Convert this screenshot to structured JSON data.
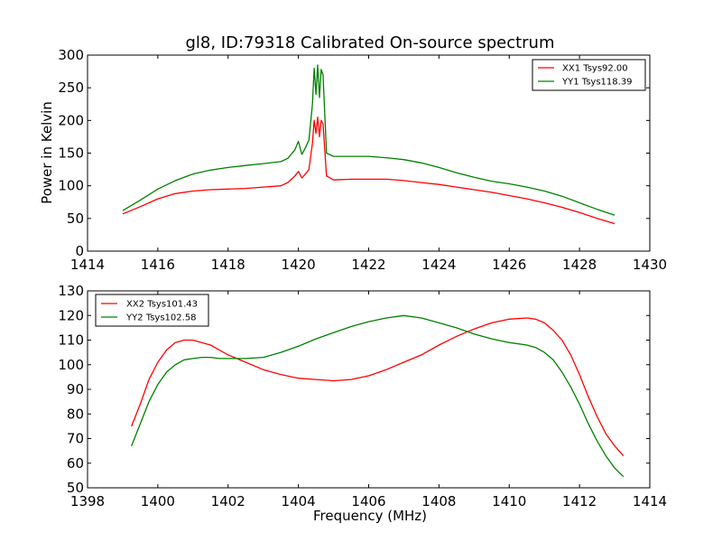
{
  "chart_data": [
    {
      "type": "line",
      "title": "gl8, ID:79318 Calibrated On-source spectrum",
      "xlabel": "",
      "ylabel": "Power in Kelvin",
      "xlim": [
        1414,
        1430
      ],
      "ylim": [
        0,
        300
      ],
      "xticks": [
        "1414",
        "1416",
        "1418",
        "1420",
        "1422",
        "1424",
        "1426",
        "1428",
        "1430"
      ],
      "yticks": [
        "0",
        "50",
        "100",
        "150",
        "200",
        "250",
        "300"
      ],
      "grid": false,
      "legend_position": "top-right",
      "series": [
        {
          "name": "XX1 Tsys92.00",
          "color": "#ff0000",
          "x": [
            1415.0,
            1415.5,
            1416.0,
            1416.5,
            1417.0,
            1417.5,
            1418.0,
            1418.5,
            1419.0,
            1419.5,
            1419.7,
            1419.9,
            1420.0,
            1420.1,
            1420.2,
            1420.3,
            1420.4,
            1420.45,
            1420.5,
            1420.55,
            1420.6,
            1420.65,
            1420.7,
            1420.8,
            1421.0,
            1421.5,
            1422.0,
            1422.5,
            1423.0,
            1423.5,
            1424.0,
            1424.5,
            1425.0,
            1425.5,
            1426.0,
            1426.5,
            1427.0,
            1427.5,
            1428.0,
            1428.5,
            1429.0
          ],
          "y": [
            57,
            68,
            80,
            88,
            92,
            94,
            95,
            96,
            98,
            100,
            105,
            115,
            122,
            112,
            118,
            125,
            165,
            200,
            180,
            205,
            175,
            200,
            195,
            115,
            109,
            110,
            110,
            110,
            108,
            105,
            102,
            98,
            94,
            90,
            85,
            80,
            74,
            67,
            59,
            50,
            42
          ]
        },
        {
          "name": "YY1 Tsys118.39",
          "color": "#008000",
          "x": [
            1415.0,
            1415.5,
            1416.0,
            1416.5,
            1417.0,
            1417.5,
            1418.0,
            1418.5,
            1419.0,
            1419.5,
            1419.7,
            1419.9,
            1420.0,
            1420.1,
            1420.2,
            1420.3,
            1420.4,
            1420.45,
            1420.5,
            1420.55,
            1420.6,
            1420.65,
            1420.7,
            1420.8,
            1421.0,
            1421.5,
            1422.0,
            1422.5,
            1423.0,
            1423.5,
            1424.0,
            1424.5,
            1425.0,
            1425.5,
            1426.0,
            1426.5,
            1427.0,
            1427.5,
            1428.0,
            1428.5,
            1429.0
          ],
          "y": [
            62,
            78,
            95,
            108,
            118,
            124,
            128,
            131,
            134,
            137,
            142,
            155,
            168,
            148,
            158,
            170,
            225,
            280,
            240,
            285,
            235,
            278,
            270,
            150,
            145,
            145,
            145,
            143,
            140,
            135,
            128,
            120,
            113,
            107,
            103,
            98,
            92,
            84,
            74,
            64,
            55
          ]
        }
      ]
    },
    {
      "type": "line",
      "title": "",
      "xlabel": "Frequency (MHz)",
      "ylabel": "",
      "xlim": [
        1398,
        1414
      ],
      "ylim": [
        50,
        130
      ],
      "xticks": [
        "1398",
        "1400",
        "1402",
        "1404",
        "1406",
        "1408",
        "1410",
        "1412",
        "1414"
      ],
      "yticks": [
        "50",
        "60",
        "70",
        "80",
        "90",
        "100",
        "110",
        "120",
        "130"
      ],
      "grid": false,
      "legend_position": "top-left",
      "series": [
        {
          "name": "XX2 Tsys101.43",
          "color": "#ff0000",
          "x": [
            1399.25,
            1399.5,
            1399.75,
            1400.0,
            1400.25,
            1400.5,
            1400.75,
            1401.0,
            1401.25,
            1401.5,
            1401.75,
            1402.0,
            1402.5,
            1403.0,
            1403.5,
            1404.0,
            1404.5,
            1405.0,
            1405.5,
            1406.0,
            1406.5,
            1407.0,
            1407.5,
            1408.0,
            1408.5,
            1409.0,
            1409.5,
            1410.0,
            1410.5,
            1410.75,
            1411.0,
            1411.25,
            1411.5,
            1411.75,
            1412.0,
            1412.25,
            1412.5,
            1412.75,
            1413.0,
            1413.25
          ],
          "y": [
            75,
            84,
            94,
            101,
            106,
            109,
            110,
            110,
            109,
            108,
            106,
            104,
            101,
            98,
            96,
            94.5,
            94,
            93.5,
            94,
            95.5,
            98,
            101,
            104,
            108,
            111.5,
            114.5,
            117,
            118.5,
            119,
            118.5,
            117,
            114,
            110,
            104,
            96,
            87,
            79,
            72,
            67,
            63
          ]
        },
        {
          "name": "YY2 Tsys102.58",
          "color": "#008000",
          "x": [
            1399.25,
            1399.5,
            1399.75,
            1400.0,
            1400.25,
            1400.5,
            1400.75,
            1401.0,
            1401.25,
            1401.5,
            1401.75,
            1402.0,
            1402.5,
            1403.0,
            1403.5,
            1404.0,
            1404.5,
            1405.0,
            1405.5,
            1406.0,
            1406.5,
            1407.0,
            1407.5,
            1408.0,
            1408.5,
            1409.0,
            1409.5,
            1410.0,
            1410.5,
            1410.75,
            1411.0,
            1411.25,
            1411.5,
            1411.75,
            1412.0,
            1412.25,
            1412.5,
            1412.75,
            1413.0,
            1413.25
          ],
          "y": [
            67,
            76,
            85,
            92,
            97,
            100,
            102,
            102.5,
            103,
            103,
            102.5,
            102.5,
            102.5,
            103,
            105,
            107.5,
            110.5,
            113,
            115.5,
            117.5,
            119,
            120,
            119,
            117,
            115,
            112.5,
            110.5,
            109,
            108,
            107,
            105,
            102,
            97,
            91,
            84,
            76,
            69,
            63,
            58,
            54.5
          ]
        }
      ]
    }
  ]
}
